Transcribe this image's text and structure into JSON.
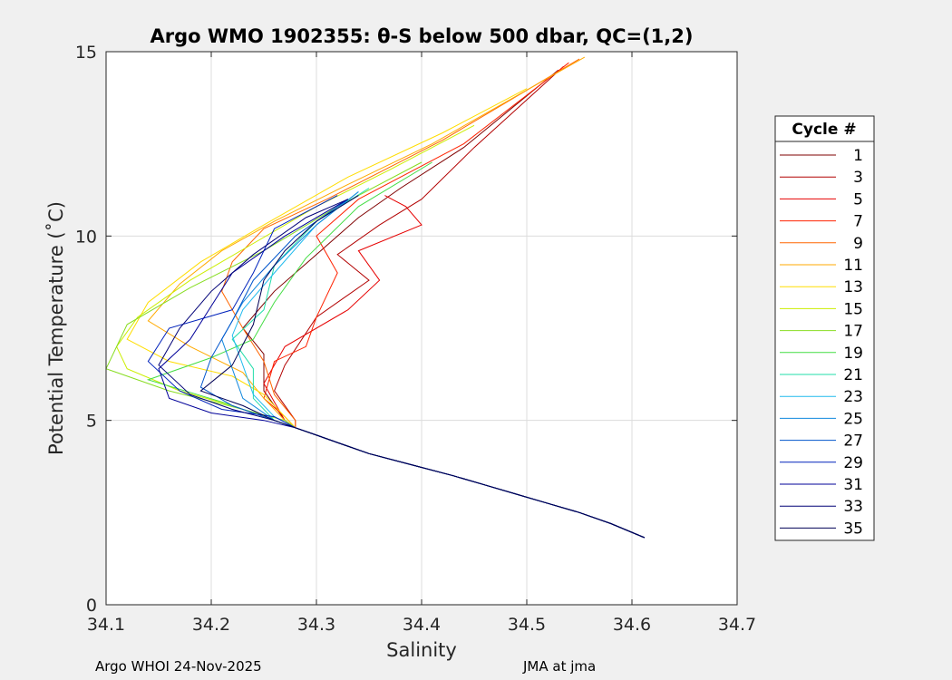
{
  "chart_data": {
    "type": "line",
    "title": "Argo WMO 1902355: θ-S below 500 dbar,  QC=(1,2)",
    "xlabel": "Salinity",
    "ylabel": "Potential Temperature (˚C)",
    "xlim": [
      34.1,
      34.7
    ],
    "ylim": [
      0,
      15
    ],
    "xticks": [
      "34.1",
      "34.2",
      "34.3",
      "34.4",
      "34.5",
      "34.6",
      "34.7"
    ],
    "yticks": [
      "0",
      "5",
      "10",
      "15"
    ],
    "grid": true,
    "legend": {
      "title": "Cycle #",
      "placement": "right",
      "entries": [
        "1",
        "3",
        "5",
        "7",
        "9",
        "11",
        "13",
        "15",
        "17",
        "19",
        "21",
        "23",
        "25",
        "27",
        "29",
        "31",
        "33",
        "35"
      ],
      "colors": [
        "#7f0000",
        "#b20000",
        "#e60000",
        "#ff2200",
        "#ff6600",
        "#ffaa00",
        "#ffdd00",
        "#ccee00",
        "#88dd22",
        "#44dd44",
        "#22ddaa",
        "#22bbee",
        "#1188dd",
        "#0055cc",
        "#0022bb",
        "#000099",
        "#000077",
        "#000055"
      ]
    },
    "common_deep_tail": [
      [
        34.612,
        1.82
      ],
      [
        34.58,
        2.2
      ],
      [
        34.55,
        2.5
      ],
      [
        34.52,
        2.75
      ],
      [
        34.49,
        3.0
      ],
      [
        34.46,
        3.25
      ],
      [
        34.43,
        3.5
      ],
      [
        34.39,
        3.8
      ],
      [
        34.35,
        4.1
      ],
      [
        34.32,
        4.4
      ],
      [
        34.3,
        4.6
      ],
      [
        34.28,
        4.8
      ]
    ],
    "series": [
      {
        "name": "1",
        "points": [
          [
            34.27,
            5.0
          ],
          [
            34.25,
            5.8
          ],
          [
            34.25,
            6.8
          ],
          [
            34.23,
            7.5
          ],
          [
            34.26,
            8.5
          ],
          [
            34.3,
            9.5
          ],
          [
            34.34,
            10.5
          ],
          [
            34.38,
            11.3
          ],
          [
            34.44,
            12.4
          ],
          [
            34.53,
            14.5
          ]
        ]
      },
      {
        "name": "3",
        "points": [
          [
            34.28,
            5.0
          ],
          [
            34.26,
            5.8
          ],
          [
            34.27,
            6.5
          ],
          [
            34.3,
            7.8
          ],
          [
            34.35,
            8.8
          ],
          [
            34.32,
            9.5
          ],
          [
            34.36,
            10.3
          ],
          [
            34.4,
            11.0
          ],
          [
            34.45,
            12.4
          ],
          [
            34.535,
            14.6
          ]
        ]
      },
      {
        "name": "5",
        "points": [
          [
            34.27,
            5.0
          ],
          [
            34.25,
            6.0
          ],
          [
            34.27,
            7.0
          ],
          [
            34.33,
            8.0
          ],
          [
            34.36,
            8.8
          ],
          [
            34.34,
            9.6
          ],
          [
            34.4,
            10.3
          ],
          [
            34.385,
            10.8
          ],
          [
            34.365,
            11.1
          ]
        ]
      },
      {
        "name": "7",
        "points": [
          [
            34.27,
            5.1
          ],
          [
            34.25,
            5.6
          ],
          [
            34.26,
            6.6
          ],
          [
            34.29,
            7.0
          ],
          [
            34.3,
            7.8
          ],
          [
            34.32,
            9.0
          ],
          [
            34.3,
            10.0
          ],
          [
            34.34,
            11.0
          ],
          [
            34.44,
            12.5
          ],
          [
            34.54,
            14.7
          ]
        ]
      },
      {
        "name": "9",
        "points": [
          [
            34.28,
            5.0
          ],
          [
            34.26,
            5.7
          ],
          [
            34.25,
            6.6
          ],
          [
            34.23,
            7.5
          ],
          [
            34.21,
            8.5
          ],
          [
            34.22,
            9.3
          ],
          [
            34.25,
            10.2
          ],
          [
            34.31,
            11.0
          ],
          [
            34.42,
            12.6
          ],
          [
            34.55,
            14.8
          ]
        ]
      },
      {
        "name": "11",
        "points": [
          [
            34.27,
            5.0
          ],
          [
            34.25,
            5.6
          ],
          [
            34.23,
            6.3
          ],
          [
            34.18,
            7.0
          ],
          [
            34.14,
            7.7
          ],
          [
            34.17,
            8.7
          ],
          [
            34.21,
            9.6
          ],
          [
            34.26,
            10.4
          ],
          [
            34.33,
            11.4
          ],
          [
            34.41,
            12.5
          ],
          [
            34.555,
            14.85
          ]
        ]
      },
      {
        "name": "13",
        "points": [
          [
            34.27,
            5.1
          ],
          [
            34.25,
            5.7
          ],
          [
            34.22,
            6.2
          ],
          [
            34.16,
            6.6
          ],
          [
            34.12,
            7.2
          ],
          [
            34.14,
            8.2
          ],
          [
            34.19,
            9.3
          ],
          [
            34.25,
            10.3
          ],
          [
            34.33,
            11.6
          ],
          [
            34.42,
            12.8
          ],
          [
            34.5,
            14.0
          ]
        ]
      },
      {
        "name": "15",
        "points": [
          [
            34.26,
            5.0
          ],
          [
            34.22,
            5.4
          ],
          [
            34.17,
            5.8
          ],
          [
            34.12,
            6.4
          ],
          [
            34.11,
            7.0
          ],
          [
            34.13,
            7.8
          ],
          [
            34.18,
            8.8
          ],
          [
            34.24,
            9.8
          ],
          [
            34.3,
            10.8
          ],
          [
            34.37,
            11.8
          ],
          [
            34.45,
            13.0
          ]
        ]
      },
      {
        "name": "17",
        "points": [
          [
            34.27,
            5.0
          ],
          [
            34.23,
            5.3
          ],
          [
            34.16,
            5.8
          ],
          [
            34.1,
            6.4
          ],
          [
            34.12,
            7.6
          ],
          [
            34.18,
            8.6
          ],
          [
            34.25,
            9.6
          ],
          [
            34.32,
            10.8
          ],
          [
            34.4,
            12.0
          ]
        ]
      },
      {
        "name": "19",
        "points": [
          [
            34.26,
            5.0
          ],
          [
            34.21,
            5.5
          ],
          [
            34.14,
            6.1
          ],
          [
            34.2,
            6.7
          ],
          [
            34.24,
            7.2
          ],
          [
            34.26,
            8.2
          ],
          [
            34.29,
            9.4
          ],
          [
            34.34,
            10.8
          ],
          [
            34.41,
            12.0
          ]
        ]
      },
      {
        "name": "21",
        "points": [
          [
            34.26,
            5.0
          ],
          [
            34.24,
            5.6
          ],
          [
            34.24,
            6.4
          ],
          [
            34.22,
            7.2
          ],
          [
            34.25,
            8.0
          ],
          [
            34.26,
            9.2
          ],
          [
            34.3,
            10.4
          ],
          [
            34.35,
            11.3
          ]
        ]
      },
      {
        "name": "23",
        "points": [
          [
            34.26,
            5.1
          ],
          [
            34.24,
            5.7
          ],
          [
            34.23,
            6.5
          ],
          [
            34.22,
            7.3
          ],
          [
            34.23,
            8.0
          ],
          [
            34.26,
            9.0
          ],
          [
            34.3,
            10.3
          ],
          [
            34.34,
            11.2
          ]
        ]
      },
      {
        "name": "25",
        "points": [
          [
            34.26,
            5.0
          ],
          [
            34.23,
            5.6
          ],
          [
            34.22,
            6.4
          ],
          [
            34.21,
            7.2
          ],
          [
            34.23,
            8.2
          ],
          [
            34.26,
            9.2
          ],
          [
            34.3,
            10.3
          ],
          [
            34.34,
            11.2
          ]
        ]
      },
      {
        "name": "27",
        "points": [
          [
            34.26,
            5.0
          ],
          [
            34.22,
            5.4
          ],
          [
            34.19,
            5.9
          ],
          [
            34.2,
            6.7
          ],
          [
            34.22,
            7.7
          ],
          [
            34.24,
            8.8
          ],
          [
            34.28,
            10.0
          ],
          [
            34.33,
            11.0
          ]
        ]
      },
      {
        "name": "29",
        "points": [
          [
            34.26,
            5.1
          ],
          [
            34.21,
            5.3
          ],
          [
            34.17,
            5.8
          ],
          [
            34.14,
            6.6
          ],
          [
            34.16,
            7.5
          ],
          [
            34.22,
            8.0
          ],
          [
            34.24,
            9.0
          ],
          [
            34.26,
            10.2
          ],
          [
            34.32,
            11.1
          ]
        ]
      },
      {
        "name": "31",
        "points": [
          [
            34.25,
            5.0
          ],
          [
            34.2,
            5.2
          ],
          [
            34.16,
            5.6
          ],
          [
            34.15,
            6.4
          ],
          [
            34.18,
            7.2
          ],
          [
            34.2,
            8.1
          ],
          [
            34.22,
            9.0
          ],
          [
            34.27,
            10.0
          ],
          [
            34.33,
            11.0
          ]
        ]
      },
      {
        "name": "33",
        "points": [
          [
            34.26,
            5.0
          ],
          [
            34.22,
            5.3
          ],
          [
            34.18,
            5.7
          ],
          [
            34.15,
            6.5
          ],
          [
            34.17,
            7.5
          ],
          [
            34.2,
            8.5
          ],
          [
            34.24,
            9.5
          ],
          [
            34.29,
            10.5
          ],
          [
            34.33,
            11.0
          ]
        ]
      },
      {
        "name": "35",
        "points": [
          [
            34.26,
            5.0
          ],
          [
            34.23,
            5.4
          ],
          [
            34.19,
            5.8
          ],
          [
            34.22,
            6.5
          ],
          [
            34.24,
            7.6
          ],
          [
            34.25,
            8.8
          ],
          [
            34.27,
            9.6
          ],
          [
            34.3,
            10.4
          ],
          [
            34.34,
            11.1
          ]
        ]
      }
    ]
  },
  "footer": {
    "left": "Argo WHOI 24-Nov-2025",
    "right": "JMA at jma"
  }
}
